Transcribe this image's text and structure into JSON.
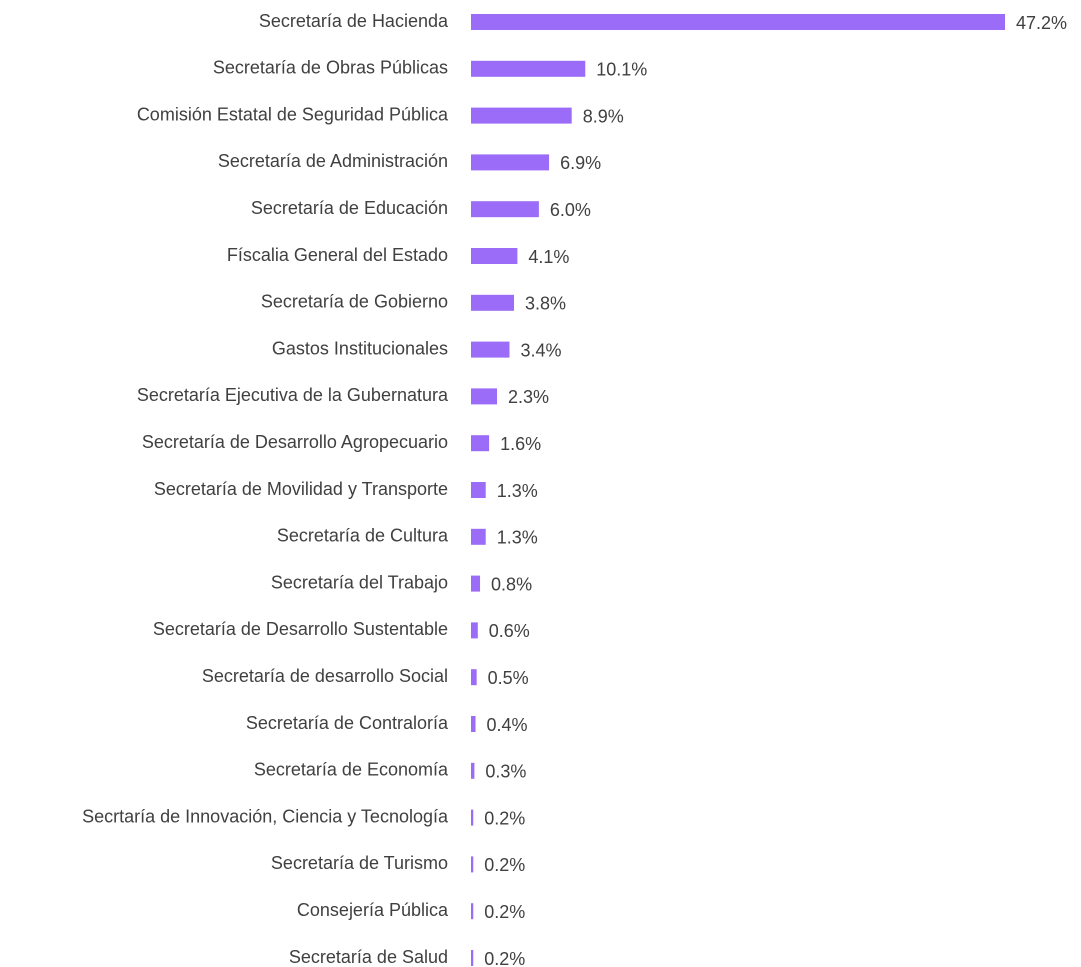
{
  "chart_data": {
    "type": "bar",
    "orientation": "horizontal",
    "color": "#9b6cf7",
    "categories": [
      "Secretaría de Hacienda",
      "Secretaría de Obras Públicas",
      "Comisión Estatal de Seguridad Pública",
      "Secretaría de Administración",
      "Secretaría de Educación",
      "Físcalia General del Estado",
      "Secretaría de Gobierno",
      "Gastos Institucionales",
      "Secretaría Ejecutiva de la Gubernatura",
      "Secretaría de Desarrollo Agropecuario",
      "Secretaría de Movilidad y Transporte",
      "Secretaría de Cultura",
      "Secretaría del Trabajo",
      "Secretaría de Desarrollo Sustentable",
      "Secretaría de desarrollo Social",
      "Secretaría de Contraloría",
      "Secretaría de Economía",
      "Secrtaría de Innovación, Ciencia y Tecnología",
      "Secretaría de Turismo",
      "Consejería Pública",
      "Secretaría de Salud"
    ],
    "values": [
      47.2,
      10.1,
      8.9,
      6.9,
      6.0,
      4.1,
      3.8,
      3.4,
      2.3,
      1.6,
      1.3,
      1.3,
      0.8,
      0.6,
      0.5,
      0.4,
      0.3,
      0.2,
      0.2,
      0.2,
      0.2
    ],
    "value_labels": [
      "47.2%",
      "10.1%",
      "8.9%",
      "6.9%",
      "6.0%",
      "4.1%",
      "3.8%",
      "3.4%",
      "2.3%",
      "1.6%",
      "1.3%",
      "1.3%",
      "0.8%",
      "0.6%",
      "0.5%",
      "0.4%",
      "0.3%",
      "0.2%",
      "0.2%",
      "0.2%",
      "0.2%"
    ]
  }
}
